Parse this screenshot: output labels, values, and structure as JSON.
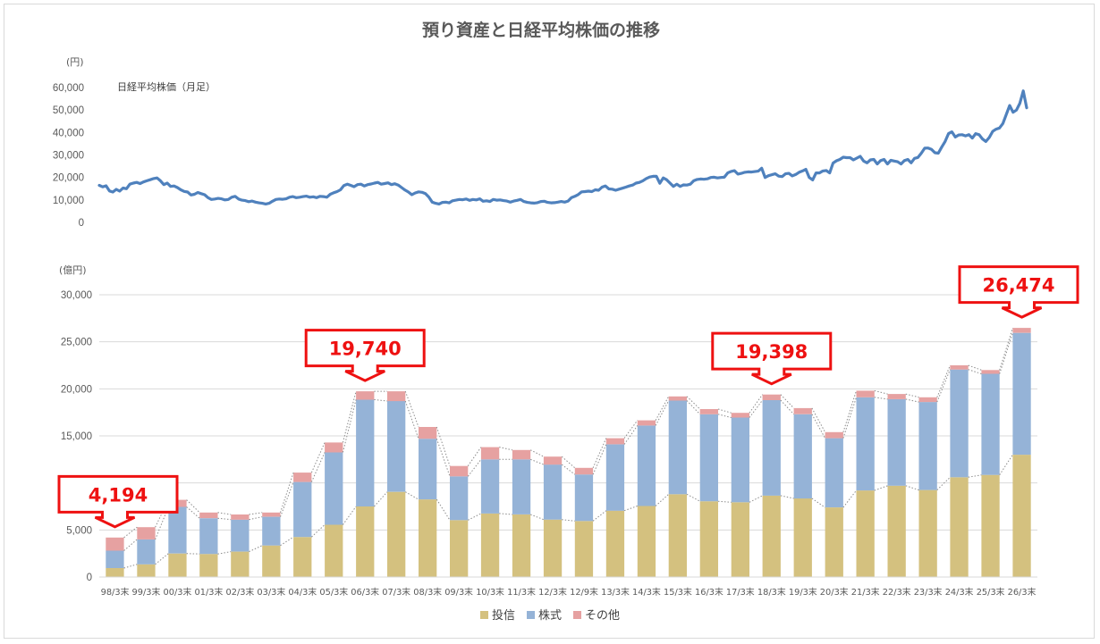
{
  "title": "預り資産と日経平均株価の推移",
  "chart_data": [
    {
      "type": "line",
      "ylabel": "(円)",
      "series_label": "日経平均株価（月足）",
      "color": "#4f81bd",
      "yticks": [
        "60,000",
        "50,000",
        "40,000",
        "30,000",
        "20,000",
        "10,000",
        "0"
      ],
      "ylim": [
        0,
        60000
      ],
      "series": [
        {
          "name": "日経平均株価（月足）",
          "x_start": "1998-03",
          "x_end": "2026-03",
          "values": [
            16500,
            15800,
            16300,
            14000,
            13500,
            14700,
            13900,
            15300,
            15000,
            17000,
            17500,
            17800,
            17300,
            18000,
            18500,
            19000,
            19500,
            19800,
            18500,
            16800,
            17500,
            16000,
            16200,
            15500,
            14500,
            13800,
            13500,
            12200,
            12500,
            13300,
            12800,
            12300,
            11000,
            10200,
            10400,
            10700,
            10500,
            10000,
            10200,
            11200,
            11600,
            10400,
            9900,
            9700,
            9200,
            9500,
            9000,
            8700,
            8500,
            8200,
            8500,
            9400,
            10200,
            10400,
            10300,
            10500,
            11200,
            11500,
            11000,
            11200,
            11500,
            11700,
            11200,
            11400,
            11000,
            11600,
            11500,
            11200,
            12500,
            13200,
            13700,
            14500,
            16400,
            17000,
            16500,
            15900,
            16800,
            17000,
            16200,
            16800,
            17100,
            17500,
            17800,
            17000,
            17300,
            17600,
            16800,
            17200,
            16600,
            15500,
            14400,
            13500,
            12300,
            13100,
            13600,
            13400,
            12800,
            11300,
            9000,
            8500,
            8200,
            8900,
            9000,
            8700,
            9600,
            9900,
            10200,
            10100,
            10400,
            9800,
            10200,
            10000,
            10500,
            9400,
            9600,
            9300,
            10200,
            9900,
            10000,
            9700,
            9500,
            9000,
            9500,
            9800,
            10200,
            9300,
            8900,
            8700,
            8600,
            8800,
            9300,
            9400,
            8900,
            8700,
            8800,
            9000,
            9300,
            9000,
            9500,
            11000,
            11600,
            12400,
            13600,
            13700,
            13900,
            13700,
            14500,
            14300,
            15700,
            16200,
            14900,
            14800,
            14300,
            14800,
            15200,
            15700,
            16200,
            16600,
            17500,
            17800,
            18500,
            19500,
            20200,
            20500,
            20500,
            17400,
            19800,
            19000,
            17500,
            16000,
            17000,
            16000,
            16700,
            16600,
            17000,
            18500,
            19100,
            19300,
            19200,
            19400,
            20000,
            20100,
            19800,
            20000,
            20100,
            22000,
            22700,
            23000,
            21500,
            21800,
            22300,
            22500,
            22400,
            22600,
            22800,
            24100,
            20000,
            20800,
            21200,
            21600,
            20600,
            20400,
            21600,
            21800,
            20700,
            21300,
            22300,
            22900,
            23600,
            20000,
            18900,
            22000,
            22000,
            22900,
            23100,
            22000,
            26400,
            27400,
            28000,
            29000,
            28800,
            28800,
            27800,
            28600,
            29400,
            27300,
            26500,
            27800,
            28000,
            26000,
            27500,
            28000,
            26000,
            27600,
            27300,
            27000,
            26000,
            27500,
            28000,
            26500,
            28500,
            28900,
            30800,
            33000,
            33100,
            32500,
            31000,
            30800,
            33500,
            36000,
            39500,
            40300,
            38000,
            38900,
            39000,
            38500,
            39000,
            37500,
            39500,
            39000,
            37100,
            36000,
            37800,
            40500,
            41500,
            42000,
            44000,
            48000,
            52000,
            49000,
            50000,
            53000,
            58500,
            51000
          ]
        }
      ]
    },
    {
      "type": "bar",
      "stacked": true,
      "ylabel": "(億円)",
      "ylim": [
        0,
        30000
      ],
      "yticks": [
        "30,000",
        "25,000",
        "20,000",
        "15,000",
        "10,000",
        "5,000",
        "0"
      ],
      "grid": true,
      "legend_position": "bottom",
      "categories": [
        "98/3末",
        "99/3末",
        "00/3末",
        "01/3末",
        "02/3末",
        "03/3末",
        "04/3末",
        "05/3末",
        "06/3末",
        "07/3末",
        "08/3末",
        "09/3末",
        "10/3末",
        "11/3末",
        "12/3末",
        "12/9末",
        "13/3末",
        "14/3末",
        "15/3末",
        "16/3末",
        "17/3末",
        "18/3末",
        "19/3末",
        "20/3末",
        "21/3末",
        "22/3末",
        "23/3末",
        "24/3末",
        "25/3末",
        "26/3末"
      ],
      "series": [
        {
          "name": "投信",
          "color": "#d4c17f",
          "values": [
            950,
            1350,
            2500,
            2450,
            2700,
            3350,
            4250,
            5550,
            7500,
            9050,
            8250,
            6050,
            6750,
            6650,
            6100,
            5950,
            7050,
            7550,
            8800,
            8050,
            7950,
            8650,
            8350,
            7400,
            9200,
            9700,
            9250,
            10600,
            10850,
            13000
          ]
        },
        {
          "name": "株式",
          "color": "#95b3d7",
          "values": [
            1850,
            2650,
            4950,
            3800,
            3400,
            3050,
            5850,
            7700,
            11350,
            9650,
            6450,
            4650,
            5750,
            5850,
            5850,
            4950,
            7050,
            8550,
            9950,
            9250,
            9000,
            10150,
            8950,
            7350,
            9900,
            9200,
            9350,
            11450,
            10750,
            12950
          ]
        },
        {
          "name": "その他",
          "color": "#e6a1a1",
          "values": [
            1394,
            1300,
            750,
            600,
            550,
            450,
            1000,
            1050,
            890,
            1040,
            1250,
            1100,
            1300,
            1000,
            850,
            700,
            650,
            550,
            450,
            550,
            500,
            598,
            650,
            650,
            700,
            550,
            500,
            450,
            400,
            524
          ]
        }
      ],
      "annotations": [
        {
          "category": "98/3末",
          "label": "4,194"
        },
        {
          "category": "06/3末",
          "label": "19,740"
        },
        {
          "category": "18/3末",
          "label": "19,398"
        },
        {
          "category": "26/3末",
          "label": "26,474"
        }
      ]
    }
  ]
}
